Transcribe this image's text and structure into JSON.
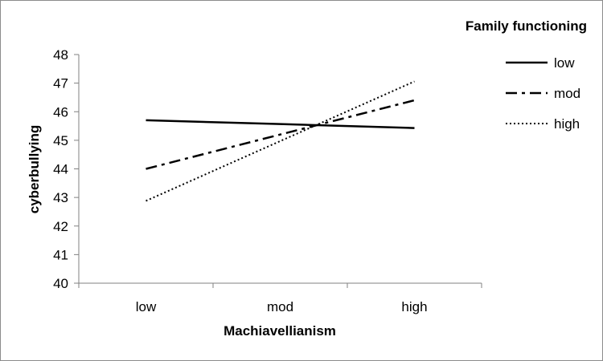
{
  "chart_data": {
    "type": "line",
    "title": "",
    "xlabel": "Machiavellianism",
    "ylabel": "cyberbullying",
    "categories": [
      "low",
      "mod",
      "high"
    ],
    "ylim": [
      40,
      48
    ],
    "yticks": [
      40,
      41,
      42,
      43,
      44,
      45,
      46,
      47,
      48
    ],
    "grid": false,
    "legend": {
      "title": "Family functioning",
      "placement": "right"
    },
    "series": [
      {
        "name": "low",
        "values": [
          45.7,
          45.57,
          45.43
        ],
        "dash": "solid"
      },
      {
        "name": "mod",
        "values": [
          44.0,
          45.2,
          46.4
        ],
        "dash": "dashdot"
      },
      {
        "name": "high",
        "values": [
          42.88,
          44.97,
          47.06
        ],
        "dash": "dotted"
      }
    ]
  }
}
